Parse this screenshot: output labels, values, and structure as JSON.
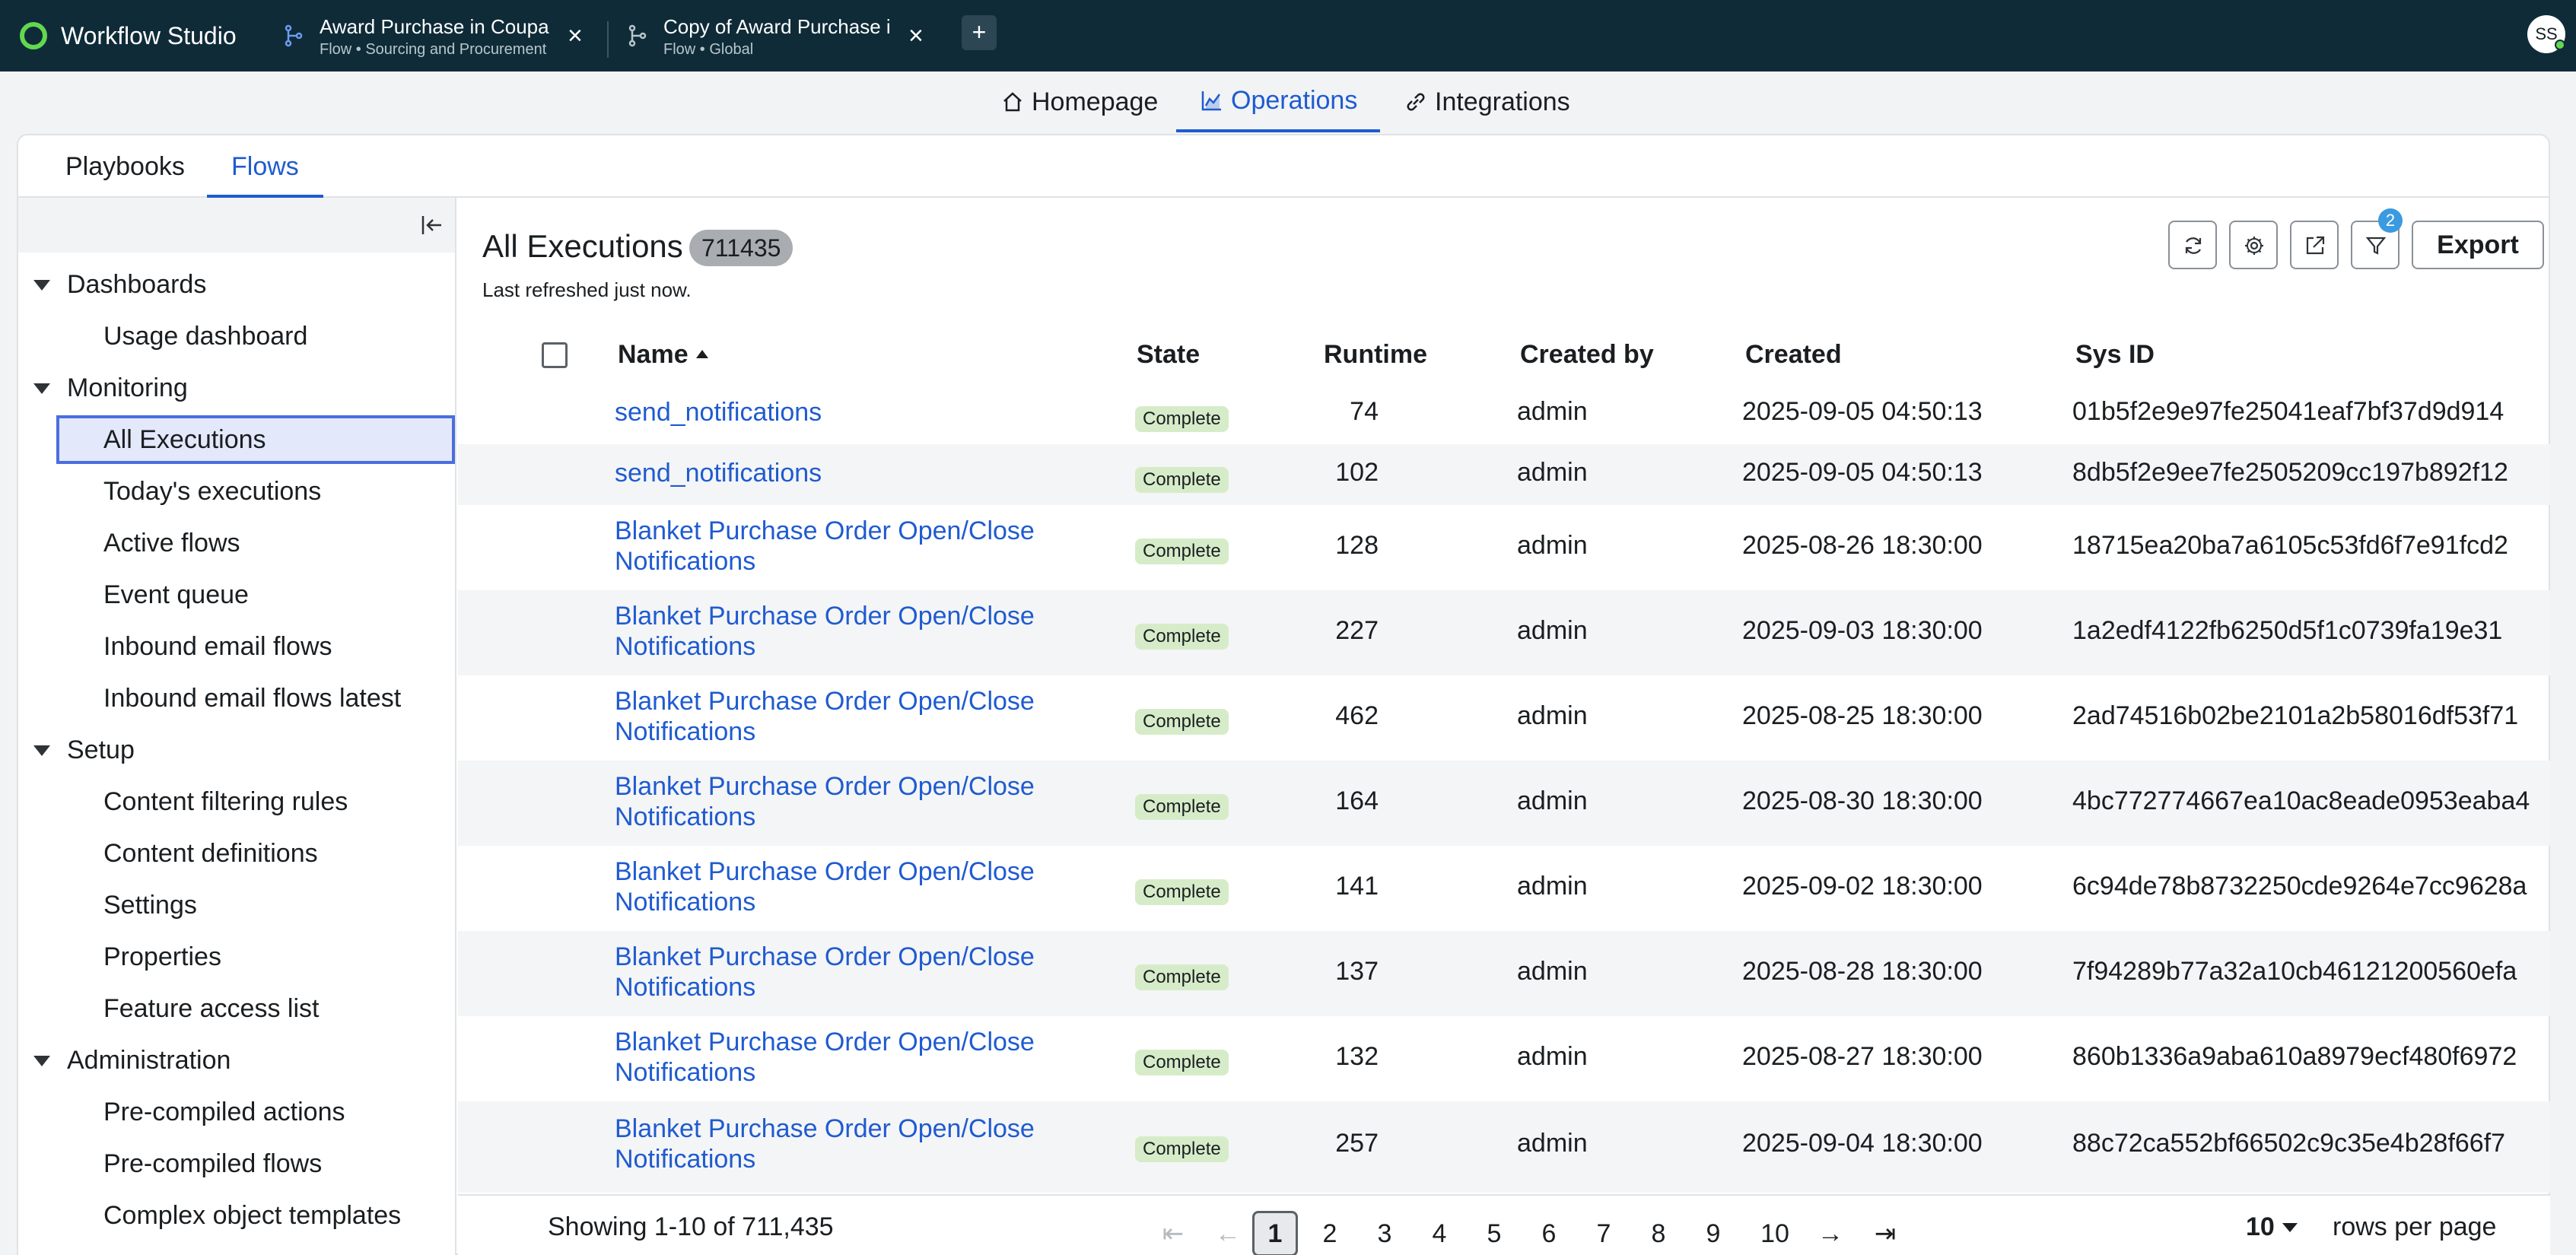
{
  "app": {
    "title": "Workflow Studio"
  },
  "tabs": [
    {
      "title": "Award Purchase in Coupa",
      "subtitle": "Flow • Sourcing and Procurement"
    },
    {
      "title": "Copy of Award Purchase in Coupa",
      "subtitle": "Flow • Global"
    }
  ],
  "add_tab_label": "+",
  "user": {
    "initials": "SS"
  },
  "nav": [
    {
      "label": "Homepage",
      "icon": "home-icon"
    },
    {
      "label": "Operations",
      "icon": "chart-icon",
      "active": true
    },
    {
      "label": "Integrations",
      "icon": "link-icon"
    }
  ],
  "subtabs": [
    {
      "label": "Playbooks"
    },
    {
      "label": "Flows",
      "active": true
    }
  ],
  "sidebar": {
    "groups": [
      {
        "label": "Dashboards",
        "items": [
          "Usage dashboard"
        ]
      },
      {
        "label": "Monitoring",
        "items": [
          "All Executions",
          "Today's executions",
          "Active flows",
          "Event queue",
          "Inbound email flows",
          "Inbound email flows latest"
        ]
      },
      {
        "label": "Setup",
        "items": [
          "Content filtering rules",
          "Content definitions",
          "Settings",
          "Properties",
          "Feature access list"
        ]
      },
      {
        "label": "Administration",
        "items": [
          "Pre-compiled actions",
          "Pre-compiled flows",
          "Complex object templates"
        ]
      }
    ],
    "selected": "All Executions"
  },
  "content": {
    "title": "All Executions",
    "count": "711435",
    "refreshed": "Last refreshed just now.",
    "filter_count": "2",
    "export_label": "Export"
  },
  "table": {
    "columns": [
      "Name",
      "State",
      "Runtime",
      "Created by",
      "Created",
      "Sys ID"
    ],
    "rows": [
      {
        "name": "send_notifications",
        "state": "Complete",
        "runtime": "74",
        "created_by": "admin",
        "created": "2025-09-05 04:50:13",
        "sys_id": "01b5f2e9e97fe25041eaf7bf37d9d914"
      },
      {
        "name": "send_notifications",
        "state": "Complete",
        "runtime": "102",
        "created_by": "admin",
        "created": "2025-09-05 04:50:13",
        "sys_id": "8db5f2e9ee7fe2505209cc197b892f12"
      },
      {
        "name": "Blanket Purchase Order Open/Close Notifications",
        "state": "Complete",
        "runtime": "128",
        "created_by": "admin",
        "created": "2025-08-26 18:30:00",
        "sys_id": "18715ea20ba7a6105c53fd6f7e91fcd2"
      },
      {
        "name": "Blanket Purchase Order Open/Close Notifications",
        "state": "Complete",
        "runtime": "227",
        "created_by": "admin",
        "created": "2025-09-03 18:30:00",
        "sys_id": "1a2edf4122fb6250d5f1c0739fa19e31"
      },
      {
        "name": "Blanket Purchase Order Open/Close Notifications",
        "state": "Complete",
        "runtime": "462",
        "created_by": "admin",
        "created": "2025-08-25 18:30:00",
        "sys_id": "2ad74516b02be2101a2b58016df53f71"
      },
      {
        "name": "Blanket Purchase Order Open/Close Notifications",
        "state": "Complete",
        "runtime": "164",
        "created_by": "admin",
        "created": "2025-08-30 18:30:00",
        "sys_id": "4bc772774667ea10ac8eade0953eaba4"
      },
      {
        "name": "Blanket Purchase Order Open/Close Notifications",
        "state": "Complete",
        "runtime": "141",
        "created_by": "admin",
        "created": "2025-09-02 18:30:00",
        "sys_id": "6c94de78b8732250cde9264e7cc9628a"
      },
      {
        "name": "Blanket Purchase Order Open/Close Notifications",
        "state": "Complete",
        "runtime": "137",
        "created_by": "admin",
        "created": "2025-08-28 18:30:00",
        "sys_id": "7f94289b77a32a10cb46121200560efa"
      },
      {
        "name": "Blanket Purchase Order Open/Close Notifications",
        "state": "Complete",
        "runtime": "132",
        "created_by": "admin",
        "created": "2025-08-27 18:30:00",
        "sys_id": "860b1336a9aba610a8979ecf480f6972"
      },
      {
        "name": "Blanket Purchase Order Open/Close Notifications",
        "state": "Complete",
        "runtime": "257",
        "created_by": "admin",
        "created": "2025-09-04 18:30:00",
        "sys_id": "88c72ca552bf66502c9c35e4b28f66f7"
      }
    ]
  },
  "pagination": {
    "showing": "Showing 1-10 of 711,435",
    "pages": [
      "1",
      "2",
      "3",
      "4",
      "5",
      "6",
      "7",
      "8",
      "9",
      "10"
    ],
    "current": "1",
    "rows_per_page_value": "10",
    "rows_per_page_label": "rows per page"
  },
  "colors": {
    "topbar": "#0f2b38",
    "accent": "#1f5bd0",
    "logo": "#62d84e",
    "state_complete": "#d6ecc9"
  }
}
